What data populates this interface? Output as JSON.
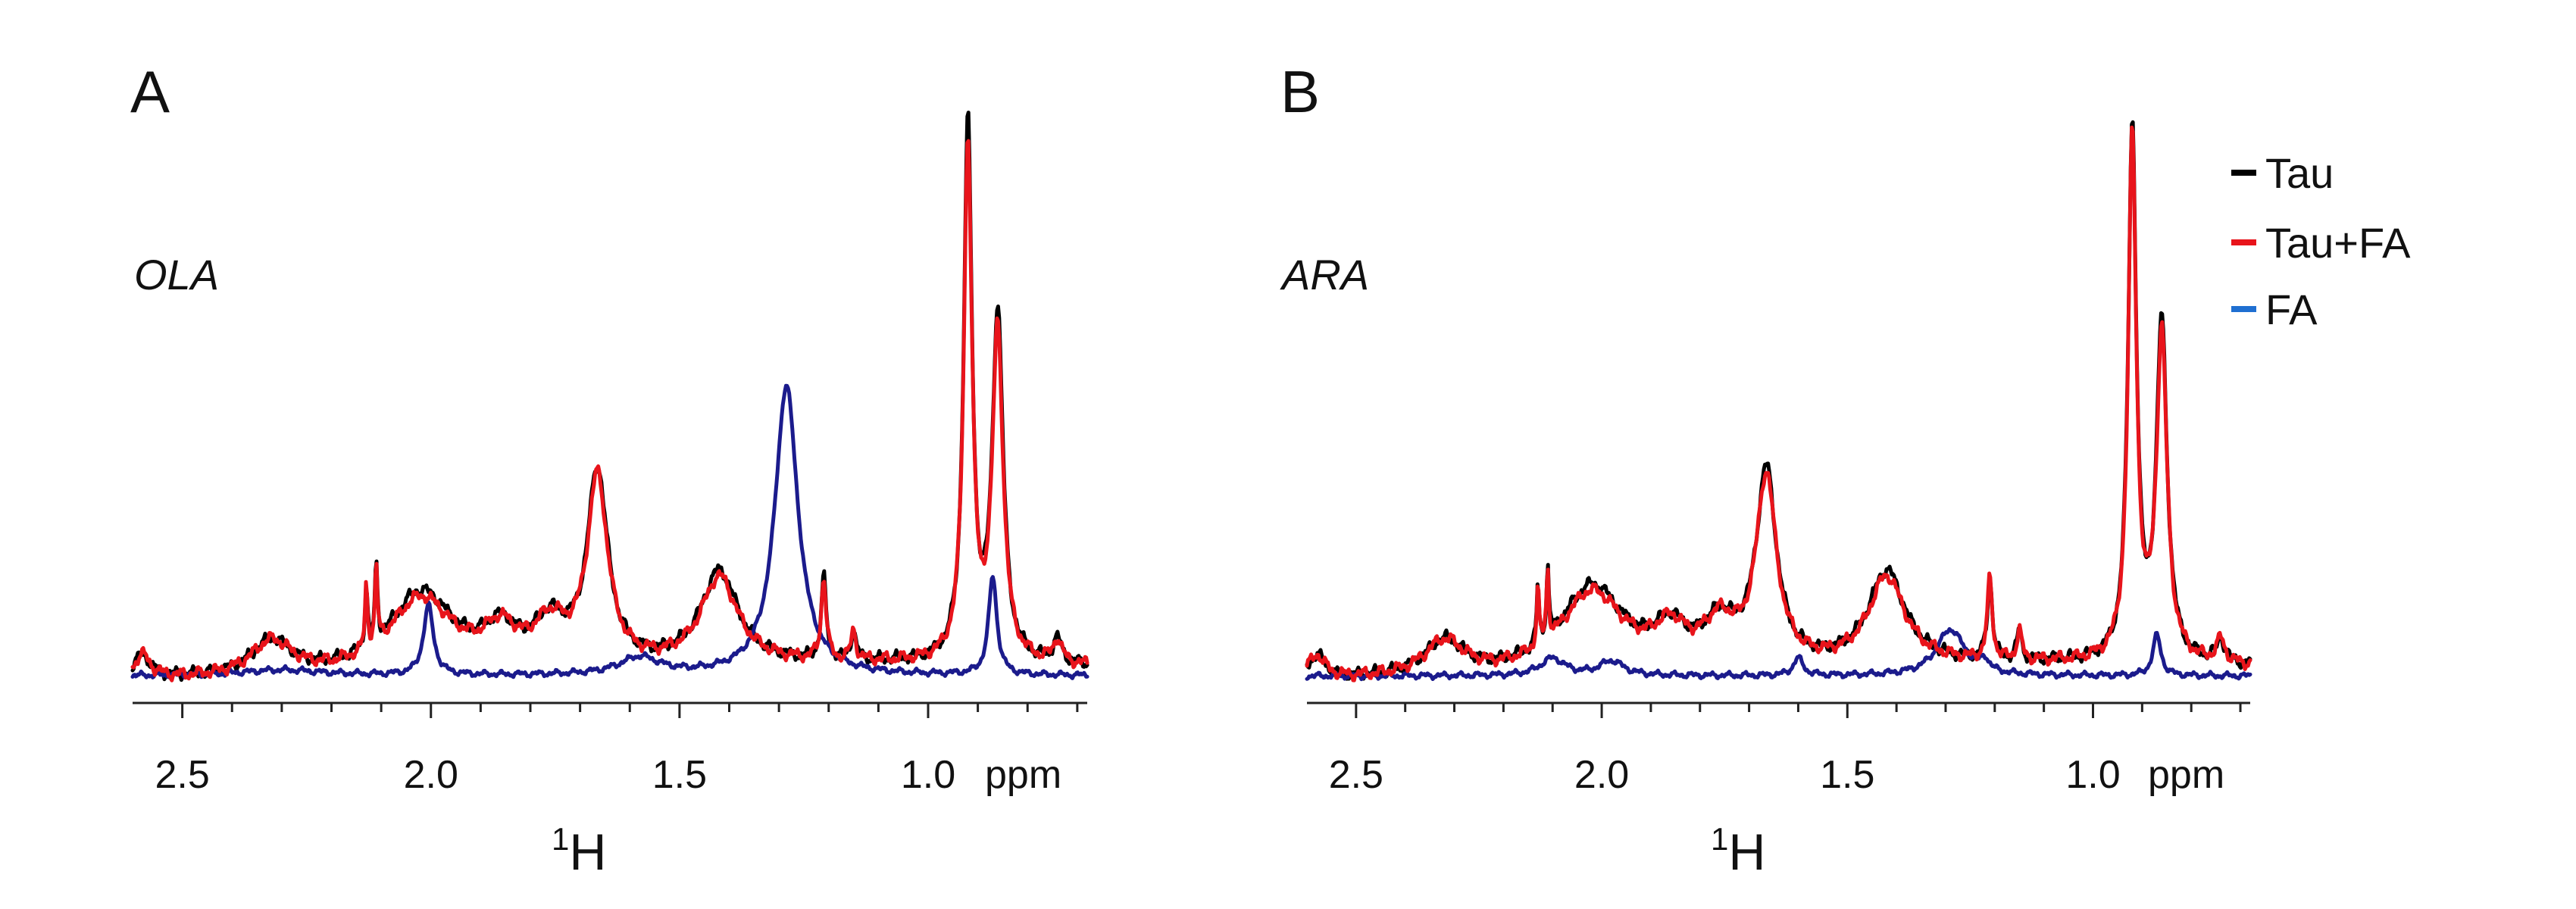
{
  "legend": [
    {
      "label": "Tau",
      "color": "#000000"
    },
    {
      "label": "Tau+FA",
      "color": "#e8141b"
    },
    {
      "label": "FA",
      "color": "#1f6fd1"
    }
  ],
  "chart_data": [
    {
      "type": "line",
      "panel": "A",
      "annotation": "OLA",
      "xlabel": "1H",
      "xlabel_main": "H",
      "xlabel_sup": "1",
      "x_unit": "ppm",
      "xlim": [
        2.6,
        0.68
      ],
      "x_reversed": true,
      "ticks": [
        2.5,
        2.0,
        1.5,
        1.0
      ],
      "tick_labels": [
        "2.5",
        "2.0",
        "1.5",
        "1.0"
      ],
      "ylim": [
        0,
        1.0
      ],
      "series": [
        {
          "name": "Tau",
          "color": "#000000",
          "peaks": [
            [
              0.92,
              0.92,
              0.01
            ],
            [
              0.86,
              0.6,
              0.013
            ],
            [
              1.665,
              0.33,
              0.025
            ],
            [
              2.02,
              0.14,
              0.08
            ],
            [
              2.32,
              0.06,
              0.05
            ],
            [
              1.76,
              0.07,
              0.04
            ],
            [
              1.86,
              0.06,
              0.04
            ],
            [
              1.42,
              0.16,
              0.045
            ],
            [
              1.21,
              0.14,
              0.006
            ],
            [
              1.15,
              0.05,
              0.006
            ],
            [
              2.13,
              0.11,
              0.003
            ],
            [
              2.11,
              0.13,
              0.003
            ],
            [
              0.74,
              0.04,
              0.01
            ],
            [
              2.58,
              0.04,
              0.02
            ]
          ]
        },
        {
          "name": "Tau+FA",
          "color": "#e8141b",
          "peaks": [
            [
              0.92,
              0.89,
              0.01
            ],
            [
              0.86,
              0.57,
              0.013
            ],
            [
              1.665,
              0.32,
              0.025
            ],
            [
              2.02,
              0.13,
              0.08
            ],
            [
              2.32,
              0.06,
              0.05
            ],
            [
              1.76,
              0.07,
              0.04
            ],
            [
              1.86,
              0.06,
              0.04
            ],
            [
              1.42,
              0.15,
              0.045
            ],
            [
              1.21,
              0.14,
              0.006
            ],
            [
              1.15,
              0.05,
              0.006
            ],
            [
              2.13,
              0.11,
              0.003
            ],
            [
              2.11,
              0.13,
              0.003
            ],
            [
              0.74,
              0.04,
              0.01
            ],
            [
              2.58,
              0.04,
              0.02
            ]
          ]
        },
        {
          "name": "FA",
          "color": "#1b1b8c",
          "peaks": [
            [
              1.285,
              0.5,
              0.028
            ],
            [
              2.005,
              0.12,
              0.012
            ],
            [
              0.87,
              0.17,
              0.01
            ],
            [
              1.58,
              0.03,
              0.05
            ],
            [
              2.3,
              0.01,
              0.1
            ]
          ]
        }
      ]
    },
    {
      "type": "line",
      "panel": "B",
      "annotation": "ARA",
      "xlabel": "1H",
      "xlabel_main": "H",
      "xlabel_sup": "1",
      "x_unit": "ppm",
      "xlim": [
        2.6,
        0.68
      ],
      "x_reversed": true,
      "ticks": [
        2.5,
        2.0,
        1.5,
        1.0
      ],
      "tick_labels": [
        "2.5",
        "2.0",
        "1.5",
        "1.0"
      ],
      "ylim": [
        0,
        1.0
      ],
      "series": [
        {
          "name": "Tau",
          "color": "#000000",
          "peaks": [
            [
              0.92,
              0.92,
              0.01
            ],
            [
              0.86,
              0.58,
              0.013
            ],
            [
              1.665,
              0.33,
              0.025
            ],
            [
              2.02,
              0.15,
              0.08
            ],
            [
              2.32,
              0.06,
              0.05
            ],
            [
              1.76,
              0.07,
              0.04
            ],
            [
              1.86,
              0.06,
              0.04
            ],
            [
              1.42,
              0.16,
              0.045
            ],
            [
              1.21,
              0.14,
              0.006
            ],
            [
              1.15,
              0.05,
              0.006
            ],
            [
              2.13,
              0.1,
              0.003
            ],
            [
              2.11,
              0.12,
              0.003
            ],
            [
              0.74,
              0.04,
              0.01
            ],
            [
              2.58,
              0.04,
              0.02
            ]
          ]
        },
        {
          "name": "Tau+FA",
          "color": "#e8141b",
          "peaks": [
            [
              0.92,
              0.9,
              0.01
            ],
            [
              0.86,
              0.56,
              0.013
            ],
            [
              1.665,
              0.32,
              0.025
            ],
            [
              2.02,
              0.14,
              0.08
            ],
            [
              2.32,
              0.06,
              0.05
            ],
            [
              1.76,
              0.07,
              0.04
            ],
            [
              1.86,
              0.06,
              0.04
            ],
            [
              1.42,
              0.15,
              0.045
            ],
            [
              1.21,
              0.14,
              0.006
            ],
            [
              1.15,
              0.05,
              0.006
            ],
            [
              2.13,
              0.1,
              0.003
            ],
            [
              2.11,
              0.12,
              0.003
            ],
            [
              0.74,
              0.04,
              0.01
            ],
            [
              2.58,
              0.04,
              0.02
            ]
          ]
        },
        {
          "name": "FA",
          "color": "#1b1b8c",
          "peaks": [
            [
              1.29,
              0.08,
              0.035
            ],
            [
              0.87,
              0.07,
              0.01
            ],
            [
              1.6,
              0.03,
              0.012
            ],
            [
              2.1,
              0.03,
              0.03
            ],
            [
              1.98,
              0.025,
              0.03
            ],
            [
              1.22,
              0.02,
              0.01
            ]
          ]
        }
      ]
    }
  ]
}
